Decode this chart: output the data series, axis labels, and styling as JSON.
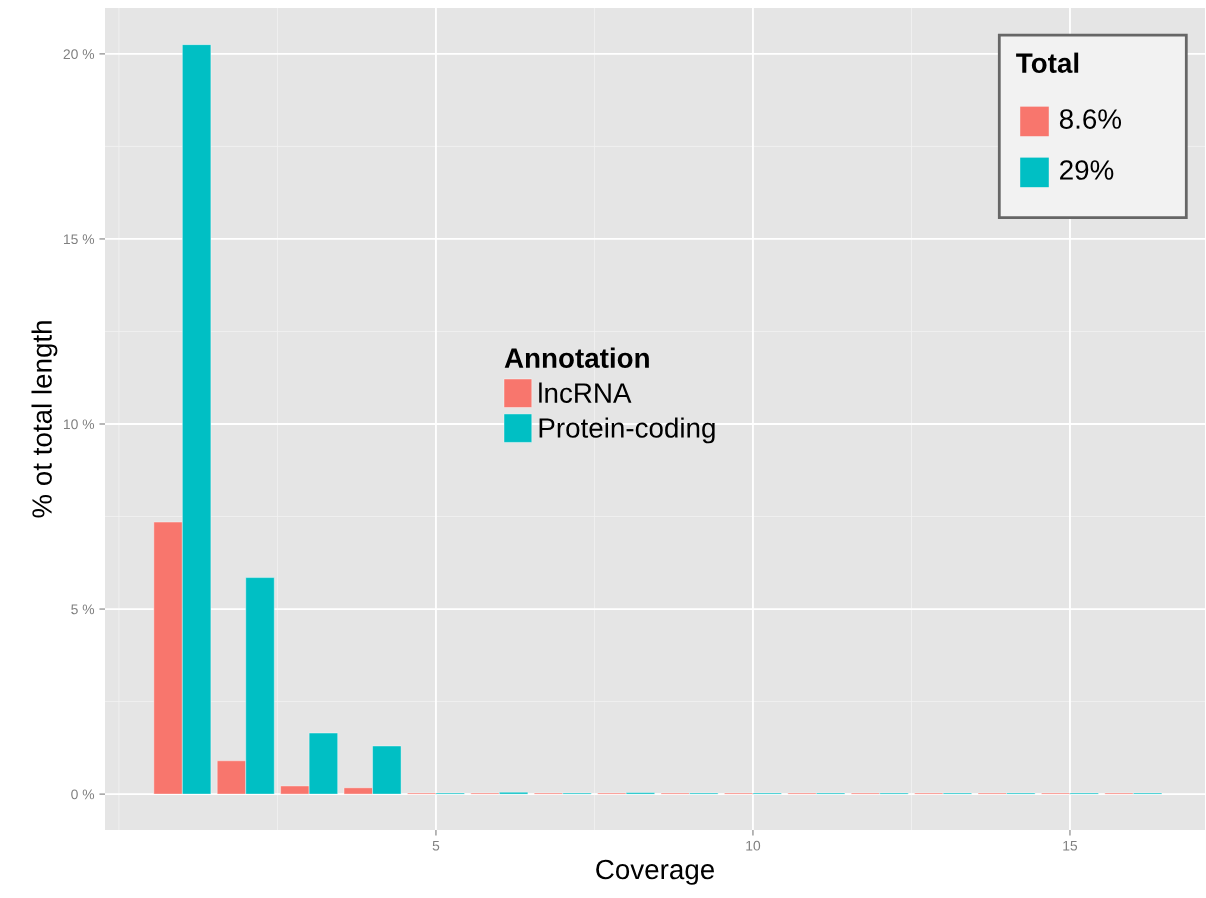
{
  "chart_data": {
    "type": "bar",
    "xlabel": "Coverage",
    "ylabel": "% ot total length",
    "legend_title": "Annotation",
    "x": [
      1,
      2,
      3,
      4,
      5,
      6,
      7,
      8,
      9,
      10,
      11,
      12,
      13,
      14,
      15,
      16
    ],
    "series": [
      {
        "name": "lncRNA",
        "color": "#f8766d",
        "values": [
          7.35,
          0.9,
          0.22,
          0.17,
          0.03,
          0.03,
          0.03,
          0.03,
          0.03,
          0.03,
          0.03,
          0.03,
          0.03,
          0.03,
          0.03,
          0.03
        ]
      },
      {
        "name": "Protein-coding",
        "color": "#00bfc4",
        "values": [
          20.25,
          5.85,
          1.65,
          1.3,
          0.03,
          0.05,
          0.03,
          0.04,
          0.03,
          0.03,
          0.03,
          0.03,
          0.03,
          0.03,
          0.03,
          0.03
        ]
      }
    ],
    "xlim": [
      -0.22,
      17.13
    ],
    "ylim": [
      -0.97,
      21.24
    ],
    "xticks": [
      5,
      10,
      15
    ],
    "yticks": [
      {
        "value": 0,
        "label": "0 %"
      },
      {
        "value": 5,
        "label": "5 %"
      },
      {
        "value": 10,
        "label": "10 %"
      },
      {
        "value": 15,
        "label": "15 %"
      },
      {
        "value": 20,
        "label": "20 %"
      }
    ],
    "grid": true,
    "legend": "center",
    "annotations": [
      "Total",
      "8.6%",
      "29%"
    ]
  }
}
